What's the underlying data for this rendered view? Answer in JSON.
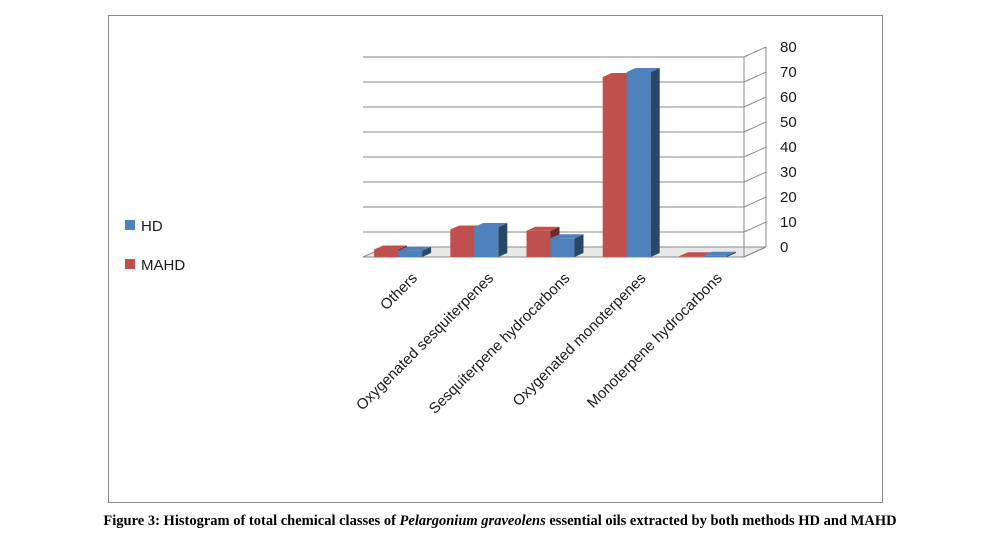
{
  "chart_data": {
    "type": "bar",
    "categories": [
      "Others",
      "Oxygenated sesquiterpenes",
      "Sesquiterpene hydrocarbons",
      "Oxygenated monoterpenes",
      "Monoterpene hydrocarbons"
    ],
    "series": [
      {
        "name": "HD",
        "values": [
          2.5,
          12,
          7.5,
          74,
          0.5
        ]
      },
      {
        "name": "MAHD",
        "values": [
          3,
          11,
          10.5,
          72,
          0.3
        ]
      }
    ],
    "ylim": [
      0,
      80
    ],
    "yticks": [
      0,
      10,
      20,
      30,
      40,
      50,
      60,
      70,
      80
    ],
    "grid": true,
    "legend_placement": "left",
    "three_d": true,
    "colors": {
      "HD": "#4f81bd",
      "MAHD": "#c0504d"
    }
  },
  "legend": {
    "items": [
      {
        "label": "HD",
        "color": "#4f81bd"
      },
      {
        "label": "MAHD",
        "color": "#c0504d"
      }
    ]
  },
  "caption": {
    "prefix": "Figure 3: Histogram of total chemical classes of ",
    "italic": "Pelargonium graveolens",
    "suffix": " essential oils extracted by both methods HD and MAHD"
  }
}
